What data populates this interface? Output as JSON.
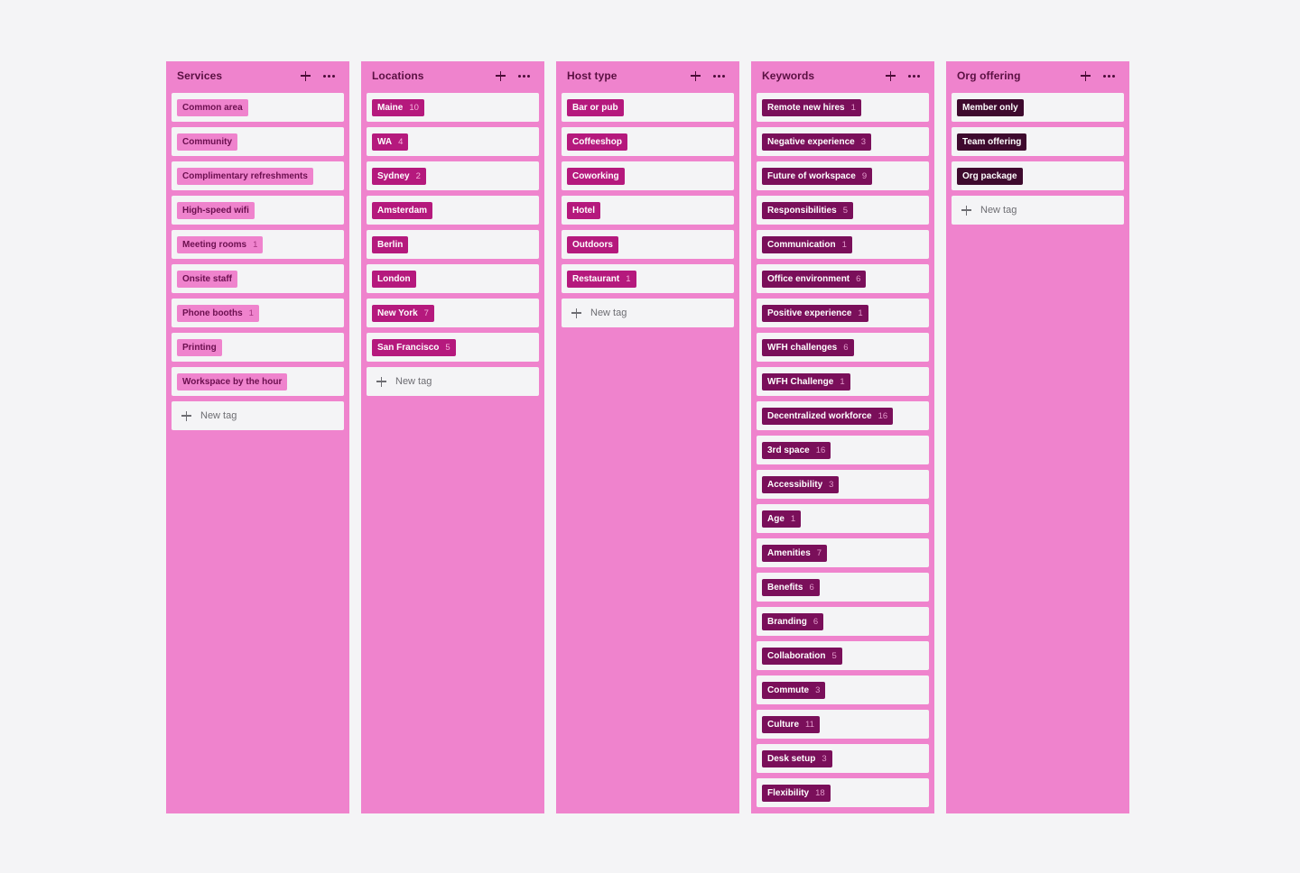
{
  "new_tag_label": "New tag",
  "columns": [
    {
      "title": "Services",
      "tag_style": "t-light",
      "items": [
        {
          "label": "Common area",
          "count": ""
        },
        {
          "label": "Community",
          "count": ""
        },
        {
          "label": "Complimentary refreshments",
          "count": ""
        },
        {
          "label": "High-speed wifi",
          "count": ""
        },
        {
          "label": "Meeting rooms",
          "count": "1"
        },
        {
          "label": "Onsite staff",
          "count": ""
        },
        {
          "label": "Phone booths",
          "count": "1"
        },
        {
          "label": "Printing",
          "count": ""
        },
        {
          "label": "Workspace by the hour",
          "count": ""
        }
      ]
    },
    {
      "title": "Locations",
      "tag_style": "t-mid",
      "items": [
        {
          "label": "Maine",
          "count": "10"
        },
        {
          "label": "WA",
          "count": "4"
        },
        {
          "label": "Sydney",
          "count": "2"
        },
        {
          "label": "Amsterdam",
          "count": ""
        },
        {
          "label": "Berlin",
          "count": ""
        },
        {
          "label": "London",
          "count": ""
        },
        {
          "label": "New York",
          "count": "7"
        },
        {
          "label": "San Francisco",
          "count": "5"
        }
      ]
    },
    {
      "title": "Host type",
      "tag_style": "t-mid",
      "items": [
        {
          "label": "Bar or pub",
          "count": ""
        },
        {
          "label": "Coffeeshop",
          "count": ""
        },
        {
          "label": "Coworking",
          "count": ""
        },
        {
          "label": "Hotel",
          "count": ""
        },
        {
          "label": "Outdoors",
          "count": ""
        },
        {
          "label": "Restaurant",
          "count": "1"
        }
      ]
    },
    {
      "title": "Keywords",
      "tag_style": "t-dark",
      "items": [
        {
          "label": "Remote new hires",
          "count": "1"
        },
        {
          "label": "Negative experience",
          "count": "3"
        },
        {
          "label": "Future of workspace",
          "count": "9"
        },
        {
          "label": "Responsibilities",
          "count": "5"
        },
        {
          "label": "Communication",
          "count": "1"
        },
        {
          "label": "Office environment",
          "count": "6"
        },
        {
          "label": "Positive experience",
          "count": "1"
        },
        {
          "label": "WFH challenges",
          "count": "6"
        },
        {
          "label": "WFH Challenge",
          "count": "1"
        },
        {
          "label": "Decentralized workforce",
          "count": "16"
        },
        {
          "label": "3rd space",
          "count": "16"
        },
        {
          "label": "Accessibility",
          "count": "3"
        },
        {
          "label": "Age",
          "count": "1"
        },
        {
          "label": "Amenities",
          "count": "7"
        },
        {
          "label": "Benefits",
          "count": "6"
        },
        {
          "label": "Branding",
          "count": "6"
        },
        {
          "label": "Collaboration",
          "count": "5"
        },
        {
          "label": "Commute",
          "count": "3"
        },
        {
          "label": "Culture",
          "count": "11"
        },
        {
          "label": "Desk setup",
          "count": "3"
        },
        {
          "label": "Flexibility",
          "count": "18"
        }
      ]
    },
    {
      "title": "Org offering",
      "tag_style": "t-darkest",
      "items": [
        {
          "label": "Member only",
          "count": ""
        },
        {
          "label": "Team offering",
          "count": ""
        },
        {
          "label": "Org package",
          "count": ""
        }
      ]
    }
  ],
  "show_new_tag": [
    true,
    true,
    true,
    false,
    true
  ],
  "icons": {
    "add": "plus-icon",
    "more": "more-dots-icon",
    "new": "plus-icon"
  }
}
